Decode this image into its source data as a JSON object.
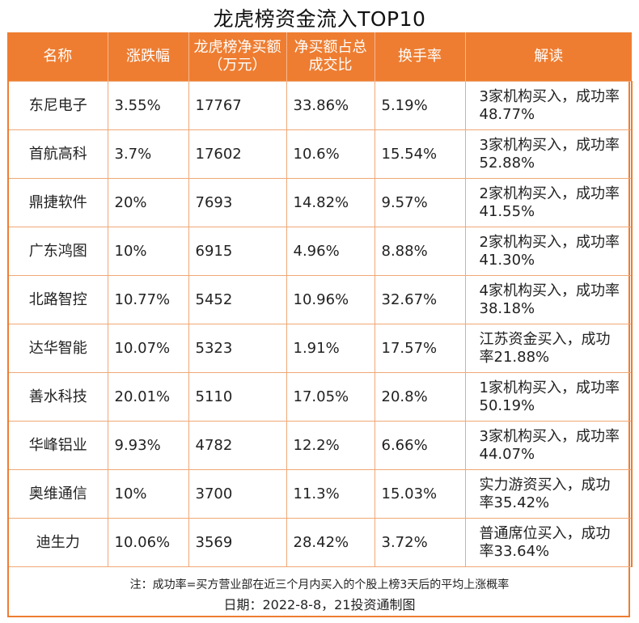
{
  "title": "龙虎榜资金流入TOP10",
  "colors": {
    "header_bg": "#ee7d31",
    "header_text": "#ffffff",
    "border": "#ee7d31"
  },
  "table": {
    "headers": [
      "名称",
      "涨跌幅",
      "龙虎榜净买额（万元）",
      "净买额占总成交比",
      "换手率",
      "解读"
    ],
    "rows": [
      [
        "东尼电子",
        "3.55%",
        "17767",
        "33.86%",
        "5.19%",
        "3家机构买入，成功率48.77%"
      ],
      [
        "首航高科",
        "3.7%",
        "17602",
        "10.6%",
        "15.54%",
        "3家机构买入，成功率52.88%"
      ],
      [
        "鼎捷软件",
        "20%",
        "7693",
        "14.82%",
        "9.57%",
        "2家机构买入，成功率41.55%"
      ],
      [
        "广东鸿图",
        "10%",
        "6915",
        "4.96%",
        "8.88%",
        "2家机构买入，成功率41.30%"
      ],
      [
        "北路智控",
        "10.77%",
        "5452",
        "10.96%",
        "32.67%",
        "4家机构买入，成功率38.18%"
      ],
      [
        "达华智能",
        "10.07%",
        "5323",
        "1.91%",
        "17.57%",
        "江苏资金买入，成功率21.88%"
      ],
      [
        "善水科技",
        "20.01%",
        "5110",
        "17.05%",
        "20.8%",
        "1家机构买入，成功率50.19%"
      ],
      [
        "华峰铝业",
        "9.93%",
        "4782",
        "12.2%",
        "6.66%",
        "3家机构买入，成功率44.07%"
      ],
      [
        "奥维通信",
        "10%",
        "3700",
        "11.3%",
        "15.03%",
        "实力游资买入，成功率35.42%"
      ],
      [
        "迪生力",
        "10.06%",
        "3569",
        "28.42%",
        "3.72%",
        "普通席位买入，成功率33.64%"
      ]
    ]
  },
  "footnote": "注：成功率=买方营业部在近三个月内买入的个股上榜3天后的平均上涨概率",
  "date_line": "日期：2022-8-8，21投资通制图"
}
